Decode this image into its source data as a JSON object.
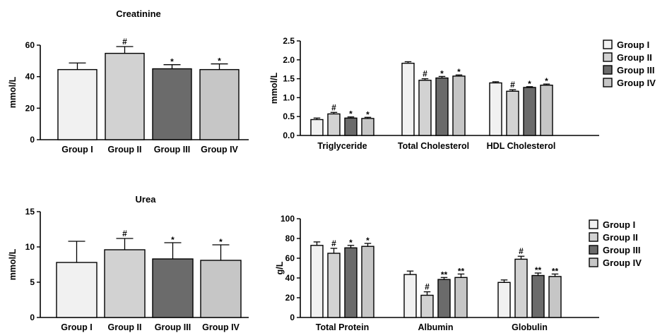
{
  "colors": {
    "group_1": "#f1f1f1",
    "group_2": "#d2d2d2",
    "group_3": "#6b6b6b",
    "group_4": "#c6c6c6",
    "stroke": "#000000"
  },
  "chart_data": [
    {
      "id": "creatinine",
      "type": "bar",
      "title": "Creatinine",
      "ylabel": "mmol/L",
      "xlabel": "",
      "ylim": [
        0,
        60
      ],
      "yticks": [
        "0",
        "20",
        "40",
        "60"
      ],
      "ytick_values": [
        0,
        20,
        40,
        60
      ],
      "categories": [
        "Group I",
        "Group II",
        "Group III",
        "Group IV"
      ],
      "values": [
        44.5,
        54.8,
        45.0,
        44.5
      ],
      "errors": [
        4.2,
        4.3,
        2.6,
        3.6
      ],
      "annotations": [
        "",
        "#",
        "*",
        "*"
      ],
      "grid": false,
      "legend": "none"
    },
    {
      "id": "lipids",
      "type": "bar",
      "title": "",
      "ylabel": "mmol/L",
      "xlabel": "",
      "ylim": [
        0,
        2.5
      ],
      "yticks": [
        "0.0",
        "0.5",
        "1.0",
        "1.5",
        "2.0",
        "2.5"
      ],
      "ytick_values": [
        0,
        0.5,
        1.0,
        1.5,
        2.0,
        2.5
      ],
      "categories": [
        "Triglyceride",
        "Total Cholesterol",
        "HDL Cholesterol"
      ],
      "series": [
        {
          "name": "Group I",
          "values": [
            0.42,
            1.91,
            1.39
          ],
          "errors": [
            0.04,
            0.04,
            0.03
          ],
          "annotations": [
            "",
            "",
            ""
          ]
        },
        {
          "name": "Group II",
          "values": [
            0.57,
            1.46,
            1.17
          ],
          "errors": [
            0.04,
            0.04,
            0.04
          ],
          "annotations": [
            "#",
            "#",
            "#"
          ]
        },
        {
          "name": "Group III",
          "values": [
            0.46,
            1.52,
            1.27
          ],
          "errors": [
            0.03,
            0.04,
            0.02
          ],
          "annotations": [
            "*",
            "*",
            "*"
          ]
        },
        {
          "name": "Group IV",
          "values": [
            0.45,
            1.57,
            1.33
          ],
          "errors": [
            0.03,
            0.03,
            0.03
          ],
          "annotations": [
            "*",
            "*",
            "*"
          ]
        }
      ],
      "grid": false,
      "legend": "right"
    },
    {
      "id": "urea",
      "type": "bar",
      "title": "Urea",
      "ylabel": "mmol/L",
      "xlabel": "",
      "ylim": [
        0,
        15
      ],
      "yticks": [
        "0",
        "5",
        "10",
        "15"
      ],
      "ytick_values": [
        0,
        5,
        10,
        15
      ],
      "categories": [
        "Group I",
        "Group II",
        "Group III",
        "Group IV"
      ],
      "values": [
        7.8,
        9.6,
        8.3,
        8.1
      ],
      "errors": [
        3.0,
        1.6,
        2.3,
        2.2
      ],
      "annotations": [
        "",
        "#",
        "*",
        "*"
      ],
      "grid": false,
      "legend": "none"
    },
    {
      "id": "proteins",
      "type": "bar",
      "title": "",
      "ylabel": "g/L",
      "xlabel": "",
      "ylim": [
        0,
        100
      ],
      "yticks": [
        "0",
        "20",
        "40",
        "60",
        "80",
        "100"
      ],
      "ytick_values": [
        0,
        20,
        40,
        60,
        80,
        100
      ],
      "categories": [
        "Total Protein",
        "Albumin",
        "Globulin"
      ],
      "series": [
        {
          "name": "Group I",
          "values": [
            73,
            43.5,
            35.5
          ],
          "errors": [
            3.5,
            3.5,
            2.5
          ],
          "annotations": [
            "",
            "",
            ""
          ]
        },
        {
          "name": "Group II",
          "values": [
            65,
            22.5,
            59
          ],
          "errors": [
            5,
            3.5,
            3
          ],
          "annotations": [
            "#",
            "#",
            "#"
          ]
        },
        {
          "name": "Group III",
          "values": [
            70.5,
            38.5,
            42.5
          ],
          "errors": [
            2.5,
            2,
            2.5
          ],
          "annotations": [
            "*",
            "**",
            "**"
          ]
        },
        {
          "name": "Group IV",
          "values": [
            72,
            40.5,
            41.5
          ],
          "errors": [
            3,
            3.5,
            2.5
          ],
          "annotations": [
            "*",
            "**",
            "**"
          ]
        }
      ],
      "grid": false,
      "legend": "right"
    }
  ]
}
